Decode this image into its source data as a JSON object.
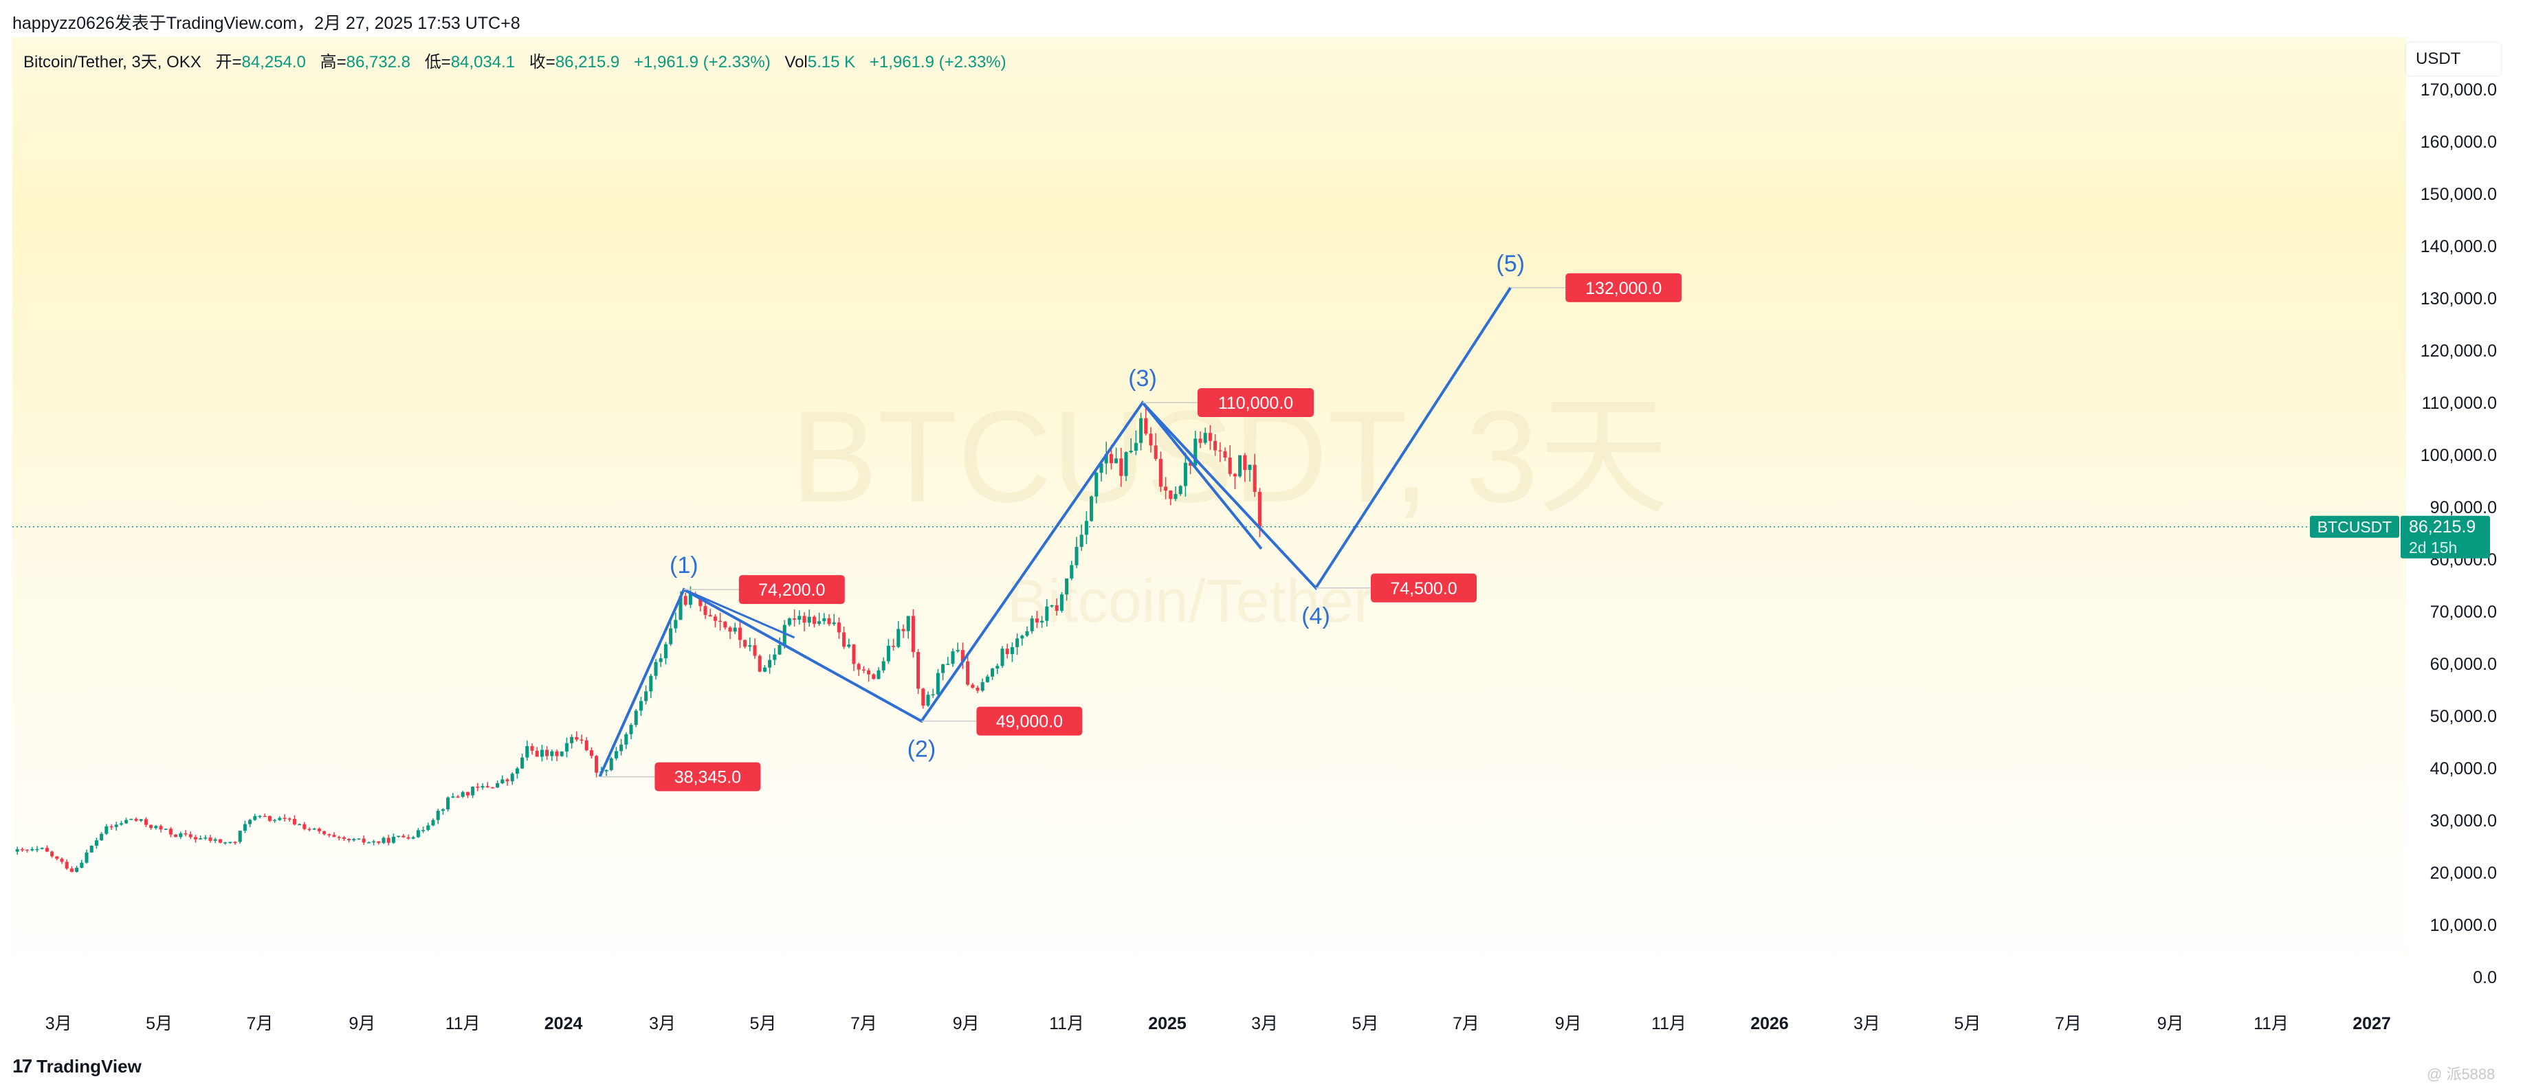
{
  "header": {
    "text": "happyzz0626发表于TradingView.com，2月 27, 2025 17:53 UTC+8"
  },
  "info_bar": {
    "symbol_text": "Bitcoin/Tether, 3天, OKX",
    "open_label": "开=",
    "open_value": "84,254.0",
    "high_label": "高=",
    "high_value": "86,732.8",
    "low_label": "低=",
    "low_value": "84,034.1",
    "close_label": "收=",
    "close_value": "86,215.9",
    "change": "+1,961.9 (+2.33%)",
    "vol_label": "Vol",
    "vol_value": "5.15 K",
    "vol_change": "+1,961.9 (+2.33%)"
  },
  "currency": "USDT",
  "watermark": {
    "main": "BTCUSDT, 3天",
    "sub": "Bitcoin/Tether"
  },
  "footer": {
    "brand": "TradingView",
    "brand_mark": "17",
    "corner_text": "@ 派5888"
  },
  "colors": {
    "up": "#089981",
    "down": "#f23645",
    "wave": "#2962ff",
    "label_bg": "#f23645"
  },
  "chart_data": {
    "type": "candlestick",
    "symbol": "BTCUSDT",
    "timeframe": "3天",
    "exchange": "OKX",
    "y_axis": {
      "min": 0,
      "max": 170000,
      "ticks": [
        0,
        10000,
        20000,
        30000,
        40000,
        50000,
        60000,
        70000,
        80000,
        90000,
        100000,
        110000,
        120000,
        130000,
        140000,
        150000,
        160000,
        170000
      ],
      "tick_labels": [
        "0.0",
        "10,000.0",
        "20,000.0",
        "30,000.0",
        "40,000.0",
        "50,000.0",
        "60,000.0",
        "70,000.0",
        "80,000.0",
        "90,000.0",
        "100,000.0",
        "110,000.0",
        "120,000.0",
        "130,000.0",
        "140,000.0",
        "150,000.0",
        "160,000.0",
        "170,000.0"
      ]
    },
    "x_axis": {
      "start": "2023-02-01",
      "end": "2027-01-01",
      "ticks": [
        {
          "date": "2023-03-01",
          "label": "3月",
          "bold": false
        },
        {
          "date": "2023-05-01",
          "label": "5月",
          "bold": false
        },
        {
          "date": "2023-07-01",
          "label": "7月",
          "bold": false
        },
        {
          "date": "2023-09-01",
          "label": "9月",
          "bold": false
        },
        {
          "date": "2023-11-01",
          "label": "11月",
          "bold": false
        },
        {
          "date": "2024-01-01",
          "label": "2024",
          "bold": true
        },
        {
          "date": "2024-03-01",
          "label": "3月",
          "bold": false
        },
        {
          "date": "2024-05-01",
          "label": "5月",
          "bold": false
        },
        {
          "date": "2024-07-01",
          "label": "7月",
          "bold": false
        },
        {
          "date": "2024-09-01",
          "label": "9月",
          "bold": false
        },
        {
          "date": "2024-11-01",
          "label": "11月",
          "bold": false
        },
        {
          "date": "2025-01-01",
          "label": "2025",
          "bold": true
        },
        {
          "date": "2025-03-01",
          "label": "3月",
          "bold": false
        },
        {
          "date": "2025-05-01",
          "label": "5月",
          "bold": false
        },
        {
          "date": "2025-07-01",
          "label": "7月",
          "bold": false
        },
        {
          "date": "2025-09-01",
          "label": "9月",
          "bold": false
        },
        {
          "date": "2025-11-01",
          "label": "11月",
          "bold": false
        },
        {
          "date": "2026-01-01",
          "label": "2026",
          "bold": true
        },
        {
          "date": "2026-03-01",
          "label": "3月",
          "bold": false
        },
        {
          "date": "2026-05-01",
          "label": "5月",
          "bold": false
        },
        {
          "date": "2026-07-01",
          "label": "7月",
          "bold": false
        },
        {
          "date": "2026-09-01",
          "label": "9月",
          "bold": false
        },
        {
          "date": "2026-11-01",
          "label": "11月",
          "bold": false
        },
        {
          "date": "2027-01-01",
          "label": "2027",
          "bold": true
        }
      ]
    },
    "price_path": [
      [
        "2023-02-01",
        24000
      ],
      [
        "2023-02-20",
        24300
      ],
      [
        "2023-03-10",
        20200
      ],
      [
        "2023-03-28",
        28000
      ],
      [
        "2023-04-14",
        30300
      ],
      [
        "2023-05-10",
        27300
      ],
      [
        "2023-06-15",
        25500
      ],
      [
        "2023-06-25",
        30600
      ],
      [
        "2023-07-20",
        29800
      ],
      [
        "2023-08-17",
        26200
      ],
      [
        "2023-09-10",
        25800
      ],
      [
        "2023-10-05",
        27500
      ],
      [
        "2023-10-25",
        34500
      ],
      [
        "2023-11-30",
        37800
      ],
      [
        "2023-12-10",
        43500
      ],
      [
        "2023-12-25",
        42300
      ],
      [
        "2024-01-11",
        46500
      ],
      [
        "2024-01-23",
        38500
      ],
      [
        "2024-02-10",
        47500
      ],
      [
        "2024-02-28",
        61000
      ],
      [
        "2024-03-14",
        73000
      ],
      [
        "2024-04-01",
        69500
      ],
      [
        "2024-04-20",
        64000
      ],
      [
        "2024-05-01",
        58500
      ],
      [
        "2024-05-20",
        69500
      ],
      [
        "2024-06-10",
        68000
      ],
      [
        "2024-07-05",
        56500
      ],
      [
        "2024-07-28",
        68500
      ],
      [
        "2024-08-05",
        50500
      ],
      [
        "2024-08-25",
        63500
      ],
      [
        "2024-09-06",
        53500
      ],
      [
        "2024-09-30",
        65000
      ],
      [
        "2024-10-28",
        71500
      ],
      [
        "2024-11-12",
        88000
      ],
      [
        "2024-11-22",
        98500
      ],
      [
        "2024-12-05",
        97500
      ],
      [
        "2024-12-17",
        106000
      ],
      [
        "2024-12-30",
        92500
      ],
      [
        "2025-01-08",
        94500
      ],
      [
        "2025-01-22",
        104500
      ],
      [
        "2025-02-05",
        97500
      ],
      [
        "2025-02-20",
        98000
      ],
      [
        "2025-02-24",
        88500
      ],
      [
        "2025-02-27",
        86216
      ]
    ],
    "wave_points": [
      {
        "label": "(1)",
        "date": "2024-03-14",
        "price": 74200
      },
      {
        "label": "(2)",
        "date": "2024-08-05",
        "price": 49000
      },
      {
        "label": "(3)",
        "date": "2024-12-17",
        "price": 110000
      },
      {
        "label": "(4)",
        "date": "2025-04-01",
        "price": 74500
      },
      {
        "label": "(5)",
        "date": "2025-07-28",
        "price": 132000
      }
    ],
    "wave_start": {
      "date": "2024-01-23",
      "price": 38345
    },
    "wave_inner_line": [
      {
        "date": "2024-12-17",
        "price": 110000
      },
      {
        "date": "2025-02-27",
        "price": 82000
      }
    ],
    "price_labels": [
      {
        "text": "38,345.0",
        "date": "2024-01-23",
        "price": 38345
      },
      {
        "text": "74,200.0",
        "date": "2024-03-14",
        "price": 74200
      },
      {
        "text": "49,000.0",
        "date": "2024-08-05",
        "price": 49000
      },
      {
        "text": "110,000.0",
        "date": "2024-12-17",
        "price": 110000
      },
      {
        "text": "74,500.0",
        "date": "2025-04-01",
        "price": 74500
      },
      {
        "text": "132,000.0",
        "date": "2025-07-28",
        "price": 132000
      }
    ],
    "last_price": {
      "value": 86215.9,
      "label": "86,215.9",
      "symbol": "BTCUSDT",
      "countdown": "2d 15h"
    }
  }
}
